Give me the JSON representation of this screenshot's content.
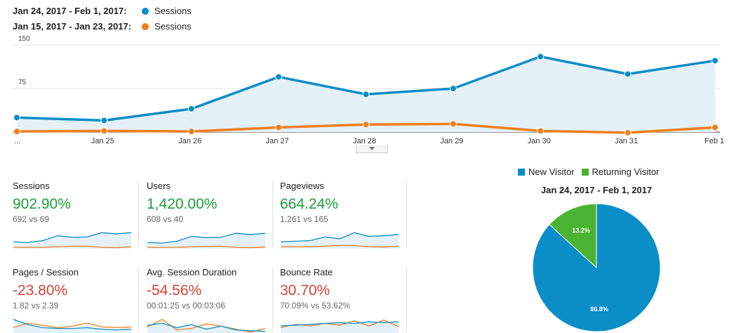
{
  "legend": {
    "current": {
      "range": "Jan 24, 2017 - Feb 1, 2017:",
      "series": "Sessions",
      "color": "#0b8dc7"
    },
    "previous": {
      "range": "Jan 15, 2017 - Jan 23, 2017:",
      "series": "Sessions",
      "color": "#f07e1b"
    }
  },
  "chart_data": [
    {
      "type": "area",
      "categories": [
        "...",
        "Jan 25",
        "Jan 26",
        "Jan 27",
        "Jan 28",
        "Jan 29",
        "Jan 30",
        "Jan 31",
        "Feb 1"
      ],
      "yticks": [
        "150",
        "75"
      ],
      "ylim": [
        0,
        150
      ],
      "grid": true,
      "series": [
        {
          "name": "Jan 24, 2017 - Feb 1, 2017",
          "color": "#0b8dc7",
          "values": [
            25,
            20,
            40,
            95,
            65,
            75,
            130,
            100,
            123
          ]
        },
        {
          "name": "Jan 15, 2017 - Jan 23, 2017",
          "color": "#f07e1b",
          "values": [
            1,
            2,
            1,
            8,
            13,
            14,
            2,
            -1,
            8
          ]
        }
      ]
    },
    {
      "type": "pie",
      "title": "Jan 24, 2017 - Feb 1, 2017",
      "legend_position": "top",
      "slices": [
        {
          "label": "New Visitor",
          "value": 86.8,
          "color": "#0b8dc7",
          "text": "86.8%"
        },
        {
          "label": "Returning Visitor",
          "value": 13.2,
          "color": "#4ab432",
          "text": "13.2%"
        }
      ]
    }
  ],
  "metrics": [
    {
      "label": "Sessions",
      "value": "902.90%",
      "trend": "pos",
      "compare": "692 vs 69",
      "spark": {
        "cur": [
          20,
          18,
          24,
          40,
          35,
          36,
          50,
          46,
          50
        ],
        "prev": [
          2,
          2,
          2,
          4,
          6,
          6,
          2,
          1,
          4
        ],
        "ymax": 55
      }
    },
    {
      "label": "Users",
      "value": "1,420.00%",
      "trend": "pos",
      "compare": "608 vs 40",
      "spark": {
        "cur": [
          18,
          16,
          22,
          38,
          34,
          35,
          48,
          44,
          48
        ],
        "prev": [
          2,
          2,
          2,
          4,
          5,
          6,
          2,
          1,
          3
        ],
        "ymax": 55
      }
    },
    {
      "label": "Pageviews",
      "value": "664.24%",
      "trend": "pos",
      "compare": "1,261 vs 165",
      "spark": {
        "cur": [
          20,
          22,
          24,
          36,
          30,
          50,
          38,
          40,
          44
        ],
        "prev": [
          4,
          4,
          4,
          6,
          8,
          8,
          4,
          3,
          6
        ],
        "ymax": 55
      }
    },
    {
      "label": "Pages / Session",
      "value": "-23.80%",
      "trend": "neg",
      "compare": "1.82 vs 2.39",
      "spark": {
        "cur": [
          40,
          26,
          18,
          16,
          16,
          18,
          14,
          12,
          14
        ],
        "prev": [
          18,
          30,
          24,
          18,
          22,
          30,
          20,
          18,
          20
        ],
        "ymax": 45
      }
    },
    {
      "label": "Avg. Session Duration",
      "value": "-54.56%",
      "trend": "neg",
      "compare": "00:01:25 vs 00:03:06",
      "spark": {
        "cur": [
          24,
          30,
          18,
          26,
          14,
          22,
          12,
          10,
          8
        ],
        "prev": [
          20,
          40,
          12,
          16,
          28,
          22,
          14,
          6,
          16
        ],
        "ymax": 45
      }
    },
    {
      "label": "Bounce Rate",
      "value": "30.70%",
      "trend": "neg",
      "compare": "70.09% vs 53.62%",
      "spark": {
        "cur": [
          20,
          22,
          24,
          26,
          28,
          26,
          30,
          28,
          30
        ],
        "prev": [
          16,
          24,
          20,
          26,
          22,
          32,
          20,
          34,
          18
        ],
        "ymax": 40
      }
    }
  ]
}
